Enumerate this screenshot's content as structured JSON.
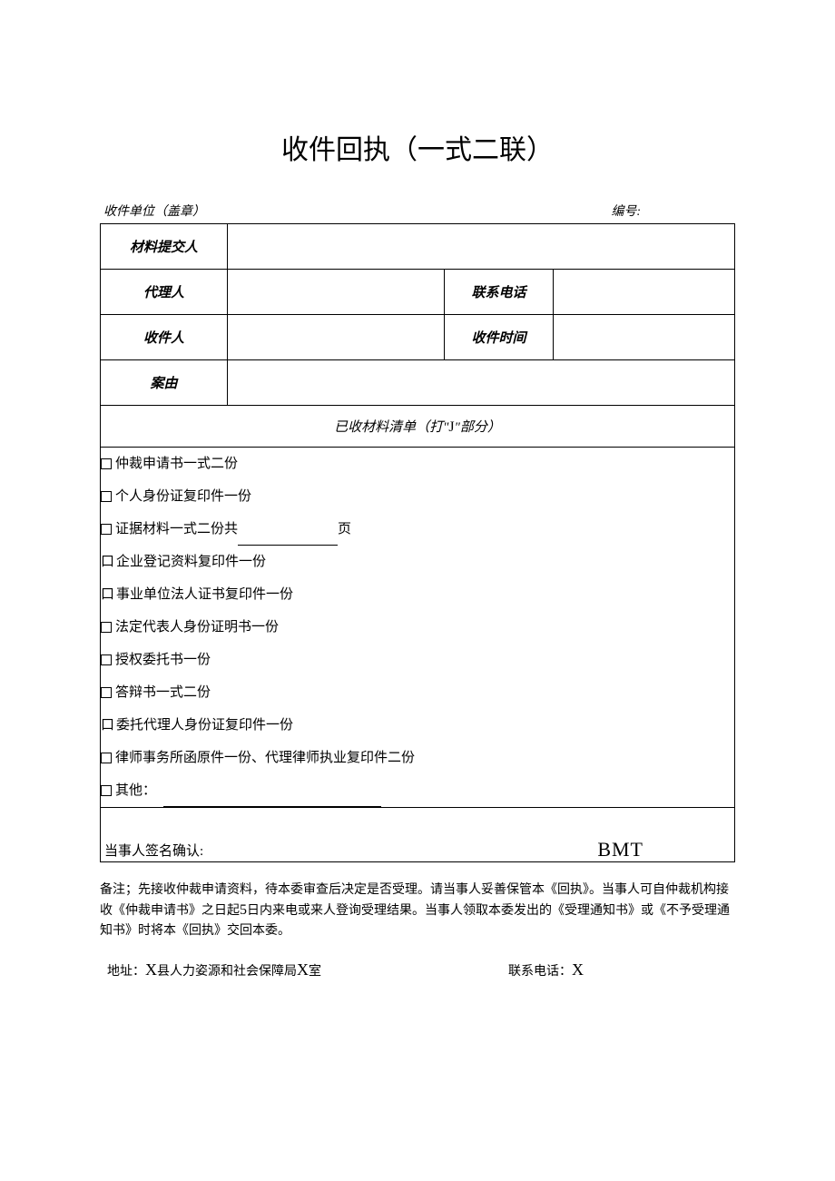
{
  "title": "收件回执（一式二联）",
  "header": {
    "unit_label": "收件单位（盖章）",
    "number_label": "编号:"
  },
  "table": {
    "submitter_label": "材料提交人",
    "agent_label": "代理人",
    "phone_label": "联系电话",
    "receiver_label": "收件人",
    "receive_time_label": "收件时间",
    "cause_label": "案由"
  },
  "checklist": {
    "header_before": "已收材料清单（打\"",
    "header_j": "J",
    "header_after": "\"部分）",
    "items": [
      {
        "box": "square",
        "text": "仲裁申请书一式二份"
      },
      {
        "box": "square",
        "text": "个人身份证复印件一份"
      },
      {
        "box": "square",
        "text_before": "证据材料一式二份共",
        "text_after": "页",
        "has_blank": true
      },
      {
        "box": "kou",
        "text": "企业登记资料复印件一份"
      },
      {
        "box": "kou",
        "text": "事业单位法人证书复印件一份"
      },
      {
        "box": "square",
        "text": "法定代表人身份证明书一份"
      },
      {
        "box": "square",
        "text": "授权委托书一份"
      },
      {
        "box": "square",
        "text": "答辩书一式二份"
      },
      {
        "box": "kou",
        "text": "委托代理人身份证复印件一份"
      },
      {
        "box": "square",
        "text": "律师事务所函原件一份、代理律师执业复印件二份"
      },
      {
        "box": "square",
        "text": "其他：",
        "has_long_blank": true
      }
    ]
  },
  "signature": {
    "label": "当事人签名确认:",
    "bmt": "BMT"
  },
  "notes": {
    "prefix": "备注；",
    "text_part1": "先接收仲裁申请资料，待本委审查后决定是否受理。请当事人妥善保管本《回执》。当事人可自仲裁机构接收《仲裁申请书》之日起",
    "days": "5",
    "text_part2": "日内来电或来人登询受理结果。当事人领取本委发出的《受理通知书》或《不予受理通知书》时将本《回执》交回本委。"
  },
  "address": {
    "label": "地址：",
    "x1": "X",
    "mid": "县人力姿源和社会保障局",
    "x2": "X",
    "suffix": "室",
    "phone_label": "联系电话：",
    "phone_x": "X"
  },
  "colors": {
    "text": "#000000",
    "background": "#ffffff",
    "border": "#000000"
  }
}
